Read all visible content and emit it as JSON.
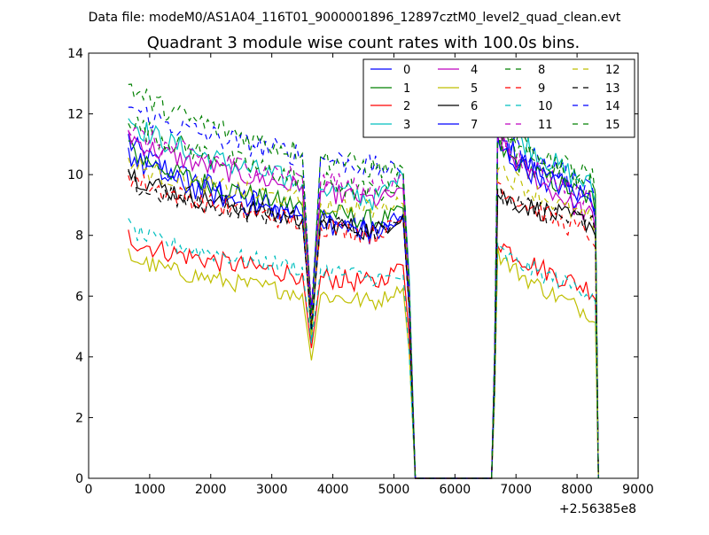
{
  "figure": {
    "suptitle": "Data file: modeM0/AS1A04_116T01_9000001896_12897cztM0_level2_quad_clean.evt"
  },
  "chart_data": {
    "type": "line",
    "title": "Quadrant 3 module wise count rates with 100.0s bins.",
    "xlabel": "",
    "ylabel": "",
    "x_offset_label": "+2.56385e8",
    "xlim": [
      0,
      9000
    ],
    "ylim": [
      0,
      14
    ],
    "x_ticks": [
      0,
      1000,
      2000,
      3000,
      4000,
      5000,
      6000,
      7000,
      8000,
      9000
    ],
    "y_ticks": [
      0,
      2,
      4,
      6,
      8,
      10,
      12,
      14
    ],
    "grid": false,
    "legend": {
      "placement": "top-right",
      "columns": 4
    },
    "segments": [
      {
        "x_start": 650,
        "x_end": 5150,
        "dip_center": 3650
      },
      {
        "x_start": 6700,
        "x_end": 8250
      }
    ],
    "edges": [
      {
        "at": 5250,
        "to": 5350
      },
      {
        "from": 6600,
        "at": 6650,
        "to": 6700
      },
      {
        "from": 8250,
        "at": 8300,
        "to": 8350
      }
    ],
    "series": [
      {
        "name": "0",
        "color": "#0000ff",
        "style": "solid",
        "a_start": 11.2,
        "a_end": 7.9,
        "b_start": 11.4,
        "b_end": 9.0,
        "dip": 5.0,
        "peak": 9.2,
        "noise": 0.45
      },
      {
        "name": "1",
        "color": "#008000",
        "style": "solid",
        "a_start": 11.0,
        "a_end": 8.3,
        "b_start": 11.0,
        "b_end": 9.2,
        "dip": 4.6,
        "peak": 9.3,
        "noise": 0.35
      },
      {
        "name": "2",
        "color": "#ff0000",
        "style": "solid",
        "a_start": 8.0,
        "a_end": 6.3,
        "b_start": 7.9,
        "b_end": 6.2,
        "dip": 4.2,
        "peak": 7.6,
        "noise": 0.35
      },
      {
        "name": "3",
        "color": "#00bfbf",
        "style": "solid",
        "a_start": 12.0,
        "a_end": 9.0,
        "b_start": 12.1,
        "b_end": 9.6,
        "dip": 4.5,
        "peak": 10.8,
        "noise": 0.4
      },
      {
        "name": "4",
        "color": "#bf00bf",
        "style": "solid",
        "a_start": 11.4,
        "a_end": 9.0,
        "b_start": 11.3,
        "b_end": 8.6,
        "dip": 5.4,
        "peak": 9.8,
        "noise": 0.35
      },
      {
        "name": "5",
        "color": "#bfbf00",
        "style": "solid",
        "a_start": 7.4,
        "a_end": 5.7,
        "b_start": 7.5,
        "b_end": 5.4,
        "dip": 3.9,
        "peak": 6.7,
        "noise": 0.3
      },
      {
        "name": "6",
        "color": "#000000",
        "style": "solid",
        "a_start": 10.2,
        "a_end": 8.0,
        "b_start": 9.4,
        "b_end": 8.4,
        "dip": 4.9,
        "peak": 9.0,
        "noise": 0.35
      },
      {
        "name": "7",
        "color": "#0000ff",
        "style": "solid",
        "a_start": 10.8,
        "a_end": 7.9,
        "b_start": 11.0,
        "b_end": 9.2,
        "dip": 5.1,
        "peak": 9.0,
        "noise": 0.4
      },
      {
        "name": "8",
        "color": "#008000",
        "style": "dashed",
        "a_start": 12.0,
        "a_end": 9.2,
        "b_start": 11.8,
        "b_end": 9.9,
        "dip": 5.6,
        "peak": 10.1,
        "noise": 0.4
      },
      {
        "name": "9",
        "color": "#ff0000",
        "style": "dashed",
        "a_start": 10.1,
        "a_end": 7.9,
        "b_start": 9.8,
        "b_end": 8.0,
        "dip": 5.2,
        "peak": 9.0,
        "noise": 0.35
      },
      {
        "name": "10",
        "color": "#00bfbf",
        "style": "dashed",
        "a_start": 8.3,
        "a_end": 6.5,
        "b_start": 7.6,
        "b_end": 6.1,
        "dip": 4.4,
        "peak": 6.7,
        "noise": 0.3
      },
      {
        "name": "11",
        "color": "#bf00bf",
        "style": "dashed",
        "a_start": 11.6,
        "a_end": 9.4,
        "b_start": 11.3,
        "b_end": 9.2,
        "dip": 5.7,
        "peak": 10.2,
        "noise": 0.35
      },
      {
        "name": "12",
        "color": "#bfbf00",
        "style": "dashed",
        "a_start": 10.5,
        "a_end": 8.7,
        "b_start": 10.4,
        "b_end": 8.5,
        "dip": 4.7,
        "peak": 9.5,
        "noise": 0.35
      },
      {
        "name": "13",
        "color": "#000000",
        "style": "dashed",
        "a_start": 9.8,
        "a_end": 8.1,
        "b_start": 9.3,
        "b_end": 8.4,
        "dip": 5.0,
        "peak": 8.9,
        "noise": 0.35
      },
      {
        "name": "14",
        "color": "#0000ff",
        "style": "dashed",
        "a_start": 12.4,
        "a_end": 10.1,
        "b_start": 11.6,
        "b_end": 9.6,
        "dip": 5.4,
        "peak": 10.2,
        "noise": 0.4
      },
      {
        "name": "15",
        "color": "#008000",
        "style": "dashed",
        "a_start": 13.1,
        "a_end": 10.0,
        "b_start": 11.3,
        "b_end": 9.8,
        "dip": 5.3,
        "peak": 10.3,
        "noise": 0.4
      }
    ]
  }
}
